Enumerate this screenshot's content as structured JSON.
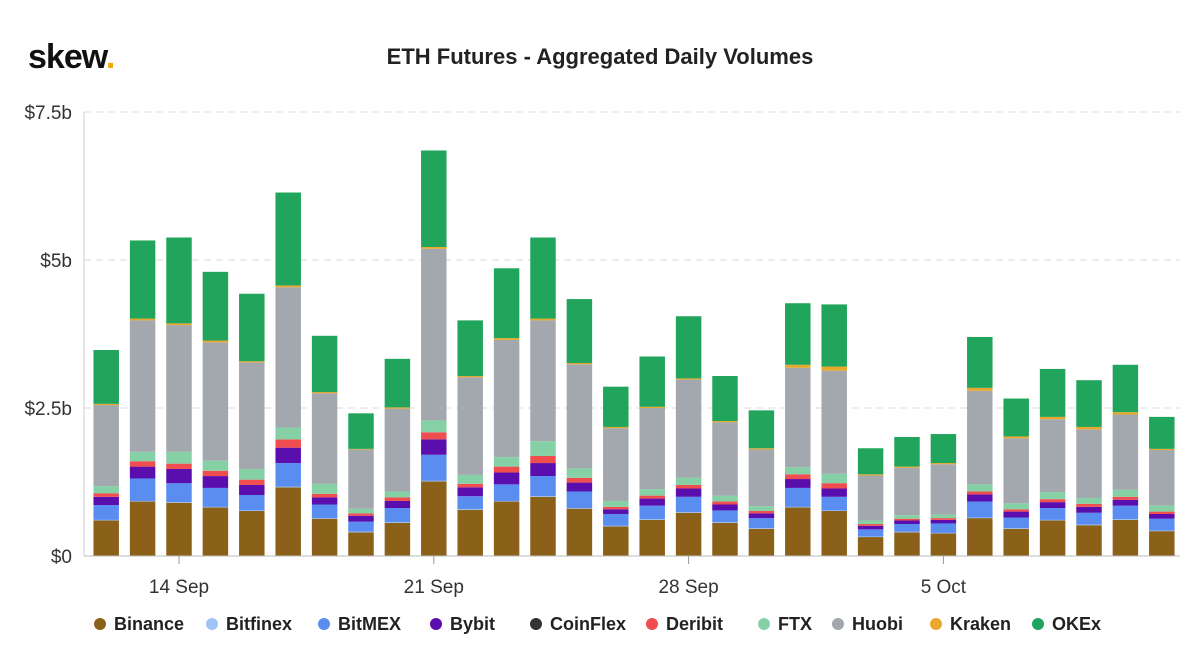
{
  "brand": {
    "name": "skew",
    "dot": "."
  },
  "chart_data": {
    "type": "bar",
    "stacked": true,
    "title": "ETH Futures - Aggregated Daily Volumes",
    "xlabel": "",
    "ylabel": "",
    "ylim": [
      0,
      7.5
    ],
    "y_unit": "billion USD",
    "y_ticks": [
      0,
      2.5,
      5,
      7.5
    ],
    "y_tick_labels": [
      "$0",
      "$2.5b",
      "$5b",
      "$7.5b"
    ],
    "x_tick_labels": [
      "14 Sep",
      "21 Sep",
      "28 Sep",
      "5 Oct"
    ],
    "x_tick_dates": [
      "2020-09-14",
      "2020-09-21",
      "2020-09-28",
      "2020-10-05"
    ],
    "grid": true,
    "legend_position": "bottom",
    "categories": [
      "2020-09-12",
      "2020-09-13",
      "2020-09-14",
      "2020-09-15",
      "2020-09-16",
      "2020-09-17",
      "2020-09-18",
      "2020-09-19",
      "2020-09-20",
      "2020-09-21",
      "2020-09-22",
      "2020-09-23",
      "2020-09-24",
      "2020-09-25",
      "2020-09-26",
      "2020-09-27",
      "2020-09-28",
      "2020-09-29",
      "2020-09-30",
      "2020-10-01",
      "2020-10-02",
      "2020-10-03",
      "2020-10-04",
      "2020-10-05",
      "2020-10-06",
      "2020-10-07",
      "2020-10-08",
      "2020-10-09",
      "2020-10-10",
      "2020-10-11"
    ],
    "series": [
      {
        "name": "Binance",
        "color": "#8b6119",
        "values": [
          0.6,
          0.92,
          0.9,
          0.82,
          0.76,
          1.16,
          0.63,
          0.4,
          0.56,
          1.26,
          0.78,
          0.92,
          1.0,
          0.8,
          0.5,
          0.61,
          0.73,
          0.56,
          0.46,
          0.82,
          0.76,
          0.32,
          0.4,
          0.38,
          0.64,
          0.46,
          0.6,
          0.52,
          0.61,
          0.42
        ]
      },
      {
        "name": "Bitfinex",
        "color": "#9fc4f4",
        "values": [
          0.01,
          0.01,
          0.01,
          0.01,
          0.01,
          0.01,
          0.01,
          0.01,
          0.01,
          0.01,
          0.01,
          0.01,
          0.01,
          0.01,
          0.01,
          0.01,
          0.01,
          0.01,
          0.01,
          0.01,
          0.01,
          0.01,
          0.01,
          0.01,
          0.01,
          0.01,
          0.01,
          0.01,
          0.01,
          0.01
        ]
      },
      {
        "name": "BitMEX",
        "color": "#5a8df0",
        "values": [
          0.25,
          0.38,
          0.32,
          0.32,
          0.26,
          0.4,
          0.23,
          0.17,
          0.24,
          0.44,
          0.22,
          0.28,
          0.34,
          0.28,
          0.2,
          0.23,
          0.26,
          0.2,
          0.17,
          0.32,
          0.23,
          0.12,
          0.13,
          0.16,
          0.27,
          0.18,
          0.2,
          0.2,
          0.23,
          0.2
        ]
      },
      {
        "name": "Bybit",
        "color": "#5a0eae",
        "values": [
          0.14,
          0.2,
          0.24,
          0.2,
          0.17,
          0.26,
          0.12,
          0.1,
          0.12,
          0.26,
          0.15,
          0.2,
          0.22,
          0.15,
          0.08,
          0.12,
          0.14,
          0.1,
          0.08,
          0.15,
          0.14,
          0.06,
          0.06,
          0.06,
          0.12,
          0.1,
          0.1,
          0.1,
          0.1,
          0.08
        ]
      },
      {
        "name": "CoinFlex",
        "color": "#333333",
        "values": [
          0,
          0,
          0,
          0,
          0,
          0,
          0,
          0,
          0,
          0,
          0,
          0,
          0,
          0,
          0,
          0,
          0,
          0,
          0,
          0,
          0,
          0,
          0,
          0,
          0,
          0,
          0,
          0,
          0,
          0
        ]
      },
      {
        "name": "Deribit",
        "color": "#f04e4e",
        "values": [
          0.06,
          0.09,
          0.09,
          0.09,
          0.09,
          0.14,
          0.06,
          0.04,
          0.06,
          0.12,
          0.06,
          0.1,
          0.12,
          0.08,
          0.04,
          0.05,
          0.06,
          0.05,
          0.04,
          0.08,
          0.09,
          0.03,
          0.03,
          0.03,
          0.05,
          0.04,
          0.05,
          0.05,
          0.05,
          0.04
        ]
      },
      {
        "name": "FTX",
        "color": "#86d0a6",
        "values": [
          0.12,
          0.16,
          0.2,
          0.17,
          0.18,
          0.2,
          0.17,
          0.08,
          0.1,
          0.2,
          0.15,
          0.16,
          0.25,
          0.16,
          0.1,
          0.11,
          0.12,
          0.1,
          0.08,
          0.12,
          0.16,
          0.06,
          0.06,
          0.06,
          0.12,
          0.1,
          0.12,
          0.1,
          0.12,
          0.1
        ]
      },
      {
        "name": "Huobi",
        "color": "#a2a8ae",
        "values": [
          1.37,
          2.22,
          2.14,
          2.0,
          1.8,
          2.37,
          1.53,
          1.0,
          1.4,
          2.9,
          1.65,
          1.98,
          2.04,
          1.76,
          1.23,
          1.37,
          1.66,
          1.24,
          0.96,
          1.68,
          1.74,
          0.76,
          0.8,
          0.85,
          1.58,
          1.1,
          1.23,
          1.16,
          1.27,
          0.94
        ]
      },
      {
        "name": "Kraken",
        "color": "#e7a82c",
        "values": [
          0.02,
          0.03,
          0.03,
          0.03,
          0.02,
          0.03,
          0.02,
          0.01,
          0.02,
          0.03,
          0.02,
          0.03,
          0.03,
          0.02,
          0.02,
          0.02,
          0.02,
          0.02,
          0.02,
          0.05,
          0.07,
          0.02,
          0.02,
          0.02,
          0.05,
          0.03,
          0.04,
          0.04,
          0.04,
          0.02
        ]
      },
      {
        "name": "OKEx",
        "color": "#21a45c",
        "values": [
          0.91,
          1.32,
          1.45,
          1.16,
          1.14,
          1.57,
          0.95,
          0.6,
          0.82,
          1.63,
          0.94,
          1.18,
          1.37,
          1.08,
          0.68,
          0.85,
          1.05,
          0.76,
          0.64,
          1.04,
          1.05,
          0.44,
          0.5,
          0.49,
          0.86,
          0.64,
          0.81,
          0.79,
          0.8,
          0.54
        ]
      }
    ]
  }
}
